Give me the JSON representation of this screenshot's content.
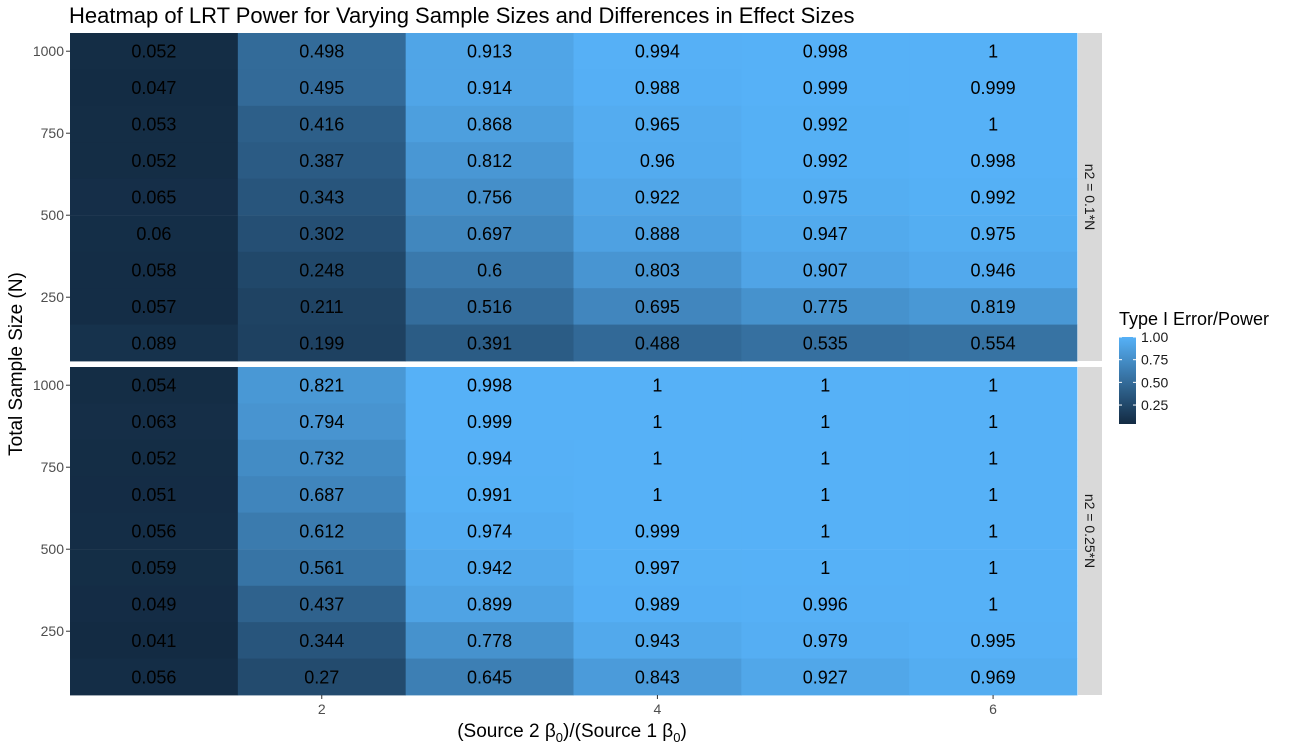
{
  "chart_data": {
    "type": "heatmap",
    "title": "Heatmap of LRT Power for Varying Sample Sizes and Differences in Effect Sizes",
    "xlabel_parts": [
      "(Source 2 β",
      "0",
      ")/(Source 1 β",
      "0",
      ")"
    ],
    "ylabel": "Total Sample Size (N)",
    "x_values": [
      1,
      2,
      3,
      4,
      5,
      6
    ],
    "x_ticks": [
      "2",
      "4",
      "6"
    ],
    "x_tick_values": [
      2,
      4,
      6
    ],
    "y_values": [
      1000,
      889,
      778,
      667,
      556,
      444,
      333,
      222,
      111
    ],
    "y_ticks": [
      "1000",
      "750",
      "500",
      "250"
    ],
    "y_tick_values": [
      1000,
      750,
      500,
      250
    ],
    "xlim": [
      0.5,
      6.5
    ],
    "ylim": [
      55.5,
      1055.5
    ],
    "grid": true,
    "legend": {
      "title": "Type I Error/Power",
      "position": "right",
      "labels": [
        "1.00",
        "0.75",
        "0.50",
        "0.25"
      ],
      "values": [
        1.0,
        0.75,
        0.5,
        0.25
      ],
      "range": [
        0.041,
        1.0
      ],
      "color_low": "#132B43",
      "color_high": "#56B1F7"
    },
    "facets": [
      {
        "label": "n2 = 0.1*N",
        "values": [
          [
            0.052,
            0.498,
            0.913,
            0.994,
            0.998,
            1
          ],
          [
            0.047,
            0.495,
            0.914,
            0.988,
            0.999,
            0.999
          ],
          [
            0.053,
            0.416,
            0.868,
            0.965,
            0.992,
            1
          ],
          [
            0.052,
            0.387,
            0.812,
            0.96,
            0.992,
            0.998
          ],
          [
            0.065,
            0.343,
            0.756,
            0.922,
            0.975,
            0.992
          ],
          [
            0.06,
            0.302,
            0.697,
            0.888,
            0.947,
            0.975
          ],
          [
            0.058,
            0.248,
            0.6,
            0.803,
            0.907,
            0.946
          ],
          [
            0.057,
            0.211,
            0.516,
            0.695,
            0.775,
            0.819
          ],
          [
            0.089,
            0.199,
            0.391,
            0.488,
            0.535,
            0.554
          ]
        ]
      },
      {
        "label": "n2 = 0.25*N",
        "values": [
          [
            0.054,
            0.821,
            0.998,
            1,
            1,
            1
          ],
          [
            0.063,
            0.794,
            0.999,
            1,
            1,
            1
          ],
          [
            0.052,
            0.732,
            0.994,
            1,
            1,
            1
          ],
          [
            0.051,
            0.687,
            0.991,
            1,
            1,
            1
          ],
          [
            0.056,
            0.612,
            0.974,
            0.999,
            1,
            1
          ],
          [
            0.059,
            0.561,
            0.942,
            0.997,
            1,
            1
          ],
          [
            0.049,
            0.437,
            0.899,
            0.989,
            0.996,
            1
          ],
          [
            0.041,
            0.344,
            0.778,
            0.943,
            0.979,
            0.995
          ],
          [
            0.056,
            0.27,
            0.645,
            0.843,
            0.927,
            0.969
          ]
        ]
      }
    ]
  }
}
